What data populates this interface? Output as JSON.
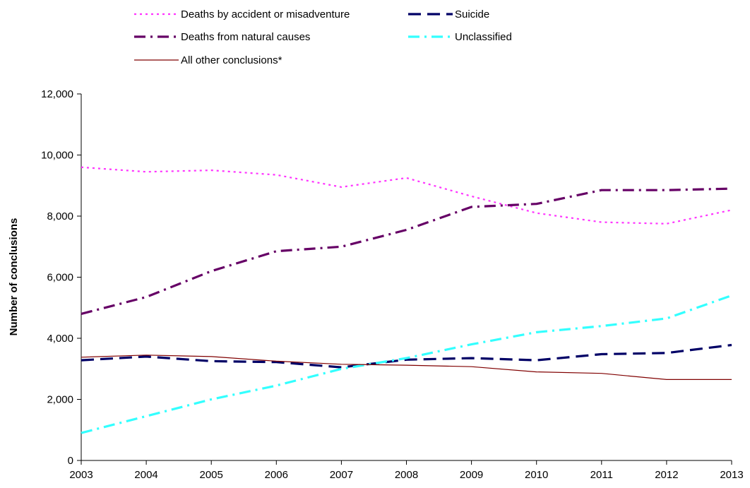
{
  "chart_data": {
    "type": "line",
    "title": "",
    "xlabel": "",
    "ylabel": "Number of conclusions",
    "categories": [
      "2003",
      "2004",
      "2005",
      "2006",
      "2007",
      "2008",
      "2009",
      "2010",
      "2011",
      "2012",
      "2013"
    ],
    "ylim": [
      0,
      12000
    ],
    "yticks": [
      0,
      2000,
      4000,
      6000,
      8000,
      10000,
      12000
    ],
    "ytick_labels": [
      "0",
      "2,000",
      "4,000",
      "6,000",
      "8,000",
      "10,000",
      "12,000"
    ],
    "grid": false,
    "legend_position": "top",
    "series": [
      {
        "name": "Deaths by accident or misadventure",
        "color": "#FF33FF",
        "dash": "dotted",
        "values": [
          9600,
          9450,
          9500,
          9350,
          8950,
          9250,
          8650,
          8100,
          7800,
          7750,
          8200
        ]
      },
      {
        "name": "Suicide",
        "color": "#000066",
        "dash": "long-dash",
        "values": [
          3280,
          3400,
          3250,
          3220,
          3050,
          3300,
          3350,
          3280,
          3480,
          3520,
          3780
        ]
      },
      {
        "name": "Deaths from natural causes",
        "color": "#660066",
        "dash": "dash-dot",
        "values": [
          4800,
          5350,
          6200,
          6850,
          7000,
          7550,
          8300,
          8400,
          8850,
          8850,
          8900
        ]
      },
      {
        "name": "Unclassified",
        "color": "#33FFFF",
        "dash": "dash-dot",
        "values": [
          900,
          1450,
          2000,
          2450,
          3000,
          3350,
          3800,
          4200,
          4400,
          4650,
          5400
        ]
      },
      {
        "name": "All other conclusions*",
        "color": "#800000",
        "dash": "solid",
        "values": [
          3380,
          3450,
          3400,
          3250,
          3150,
          3120,
          3070,
          2900,
          2850,
          2650,
          2650
        ]
      }
    ]
  }
}
